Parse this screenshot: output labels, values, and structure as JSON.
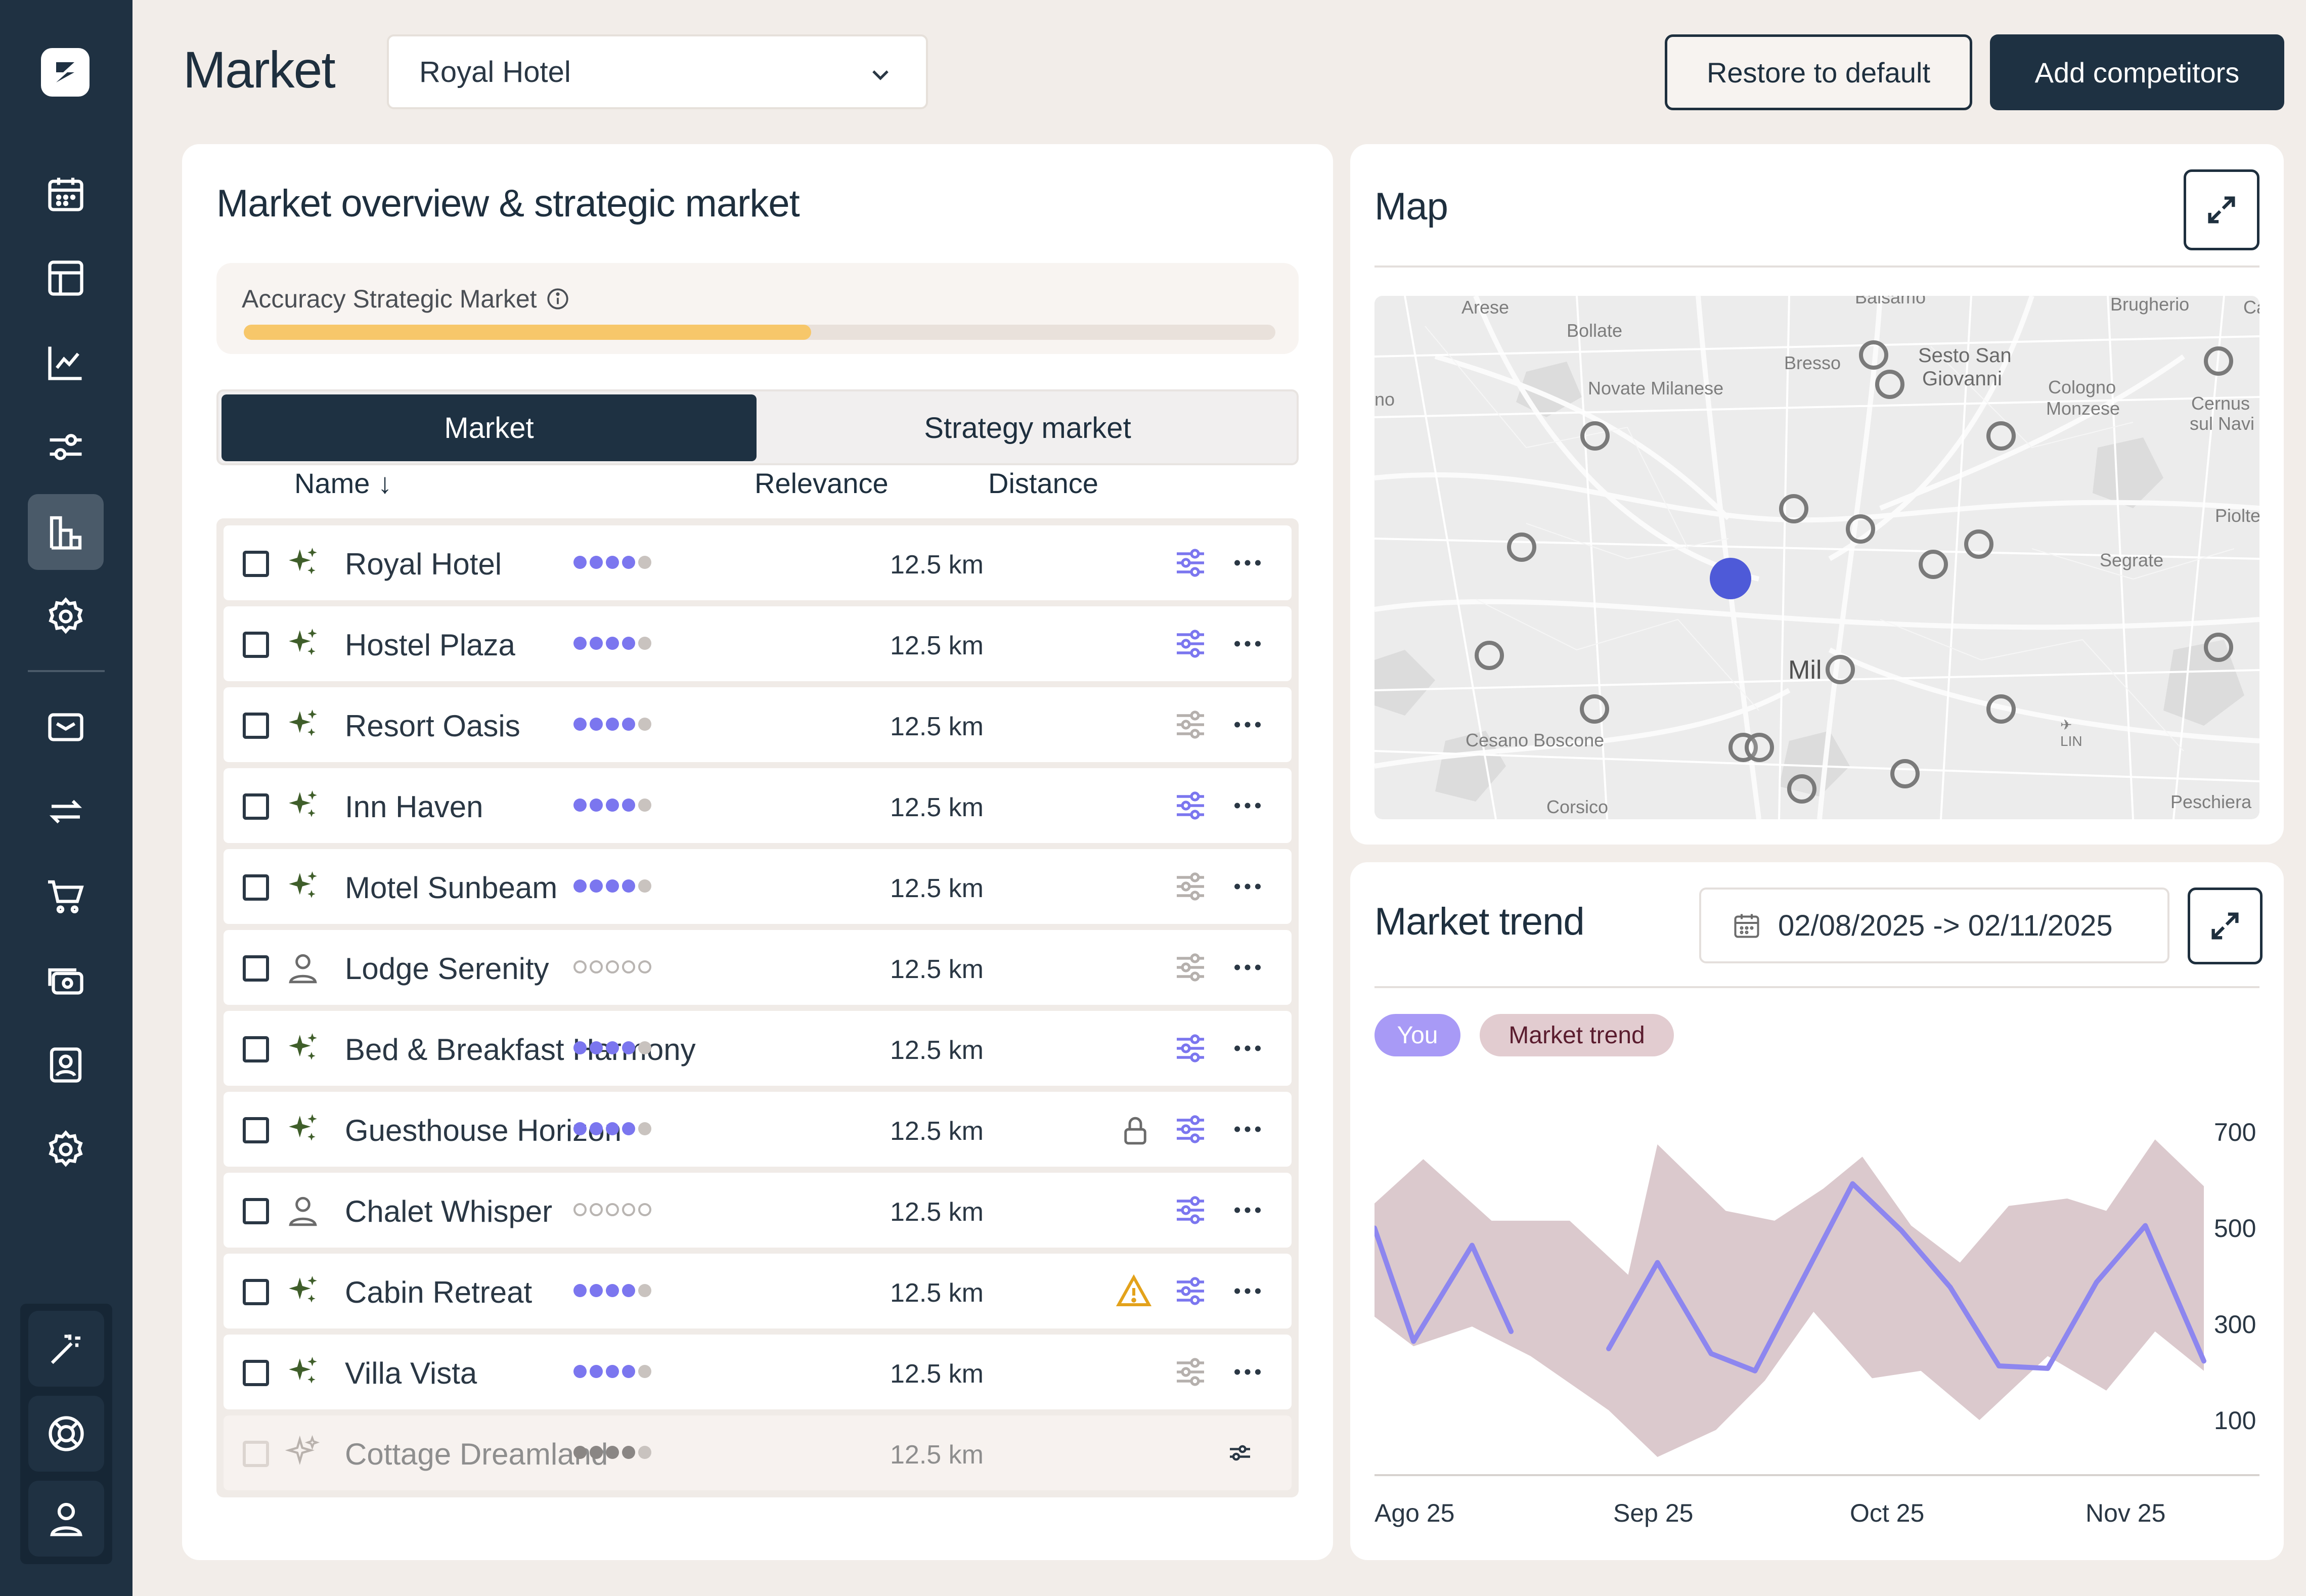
{
  "header": {
    "title": "Market",
    "hotel_select": "Royal Hotel",
    "restore_label": "Restore to default",
    "add_label": "Add competitors"
  },
  "overview": {
    "title": "Market overview & strategic market",
    "accuracy_label": "Accuracy Strategic Market",
    "accuracy_progress_pct": 55,
    "tabs": {
      "market": "Market",
      "strategy": "Strategy market"
    },
    "columns": {
      "name": "Name ↓",
      "relevance": "Relevance",
      "distance": "Distance"
    },
    "rows": [
      {
        "name": "Royal Hotel",
        "icon": "sparkle-icon",
        "relevance": 4,
        "distance": "12.5 km",
        "sliders_active": true
      },
      {
        "name": "Hostel Plaza",
        "icon": "sparkle-icon",
        "relevance": 4,
        "distance": "12.5 km",
        "sliders_active": true
      },
      {
        "name": "Resort Oasis",
        "icon": "sparkle-icon",
        "relevance": 4,
        "distance": "12.5 km",
        "sliders_active": false
      },
      {
        "name": "Inn Haven",
        "icon": "sparkle-icon",
        "relevance": 4,
        "distance": "12.5 km",
        "sliders_active": true
      },
      {
        "name": "Motel Sunbeam",
        "icon": "sparkle-icon",
        "relevance": 4,
        "distance": "12.5 km",
        "sliders_active": false
      },
      {
        "name": "Lodge Serenity",
        "icon": "person-icon",
        "relevance": 0,
        "distance": "12.5 km",
        "sliders_active": false
      },
      {
        "name": "Bed & Breakfast Harmony",
        "icon": "sparkle-icon",
        "relevance": 4,
        "distance": "12.5 km",
        "sliders_active": true
      },
      {
        "name": "Guesthouse Horizon",
        "icon": "sparkle-icon",
        "relevance": 4,
        "distance": "12.5 km",
        "sliders_active": true,
        "badge": "lock-icon"
      },
      {
        "name": "Chalet Whisper",
        "icon": "person-icon",
        "relevance": 0,
        "distance": "12.5 km",
        "sliders_active": true
      },
      {
        "name": "Cabin Retreat",
        "icon": "sparkle-icon",
        "relevance": 4,
        "distance": "12.5 km",
        "sliders_active": true,
        "badge": "warning-icon"
      },
      {
        "name": "Villa Vista",
        "icon": "sparkle-icon",
        "relevance": 4,
        "distance": "12.5 km",
        "sliders_active": false
      },
      {
        "name": "Cottage Dreamland",
        "icon": "sparkle-icon",
        "relevance": 4,
        "distance": "12.5 km",
        "disabled": true
      }
    ]
  },
  "map": {
    "title": "Map",
    "labels": [
      "Arese",
      "Bollate",
      "Balsamo",
      "Brugherio",
      "Bresso",
      "Sesto San",
      "Giovanni",
      "Novate Milanese",
      "Cologno",
      "Monzese",
      "Cernusco",
      "sul Naviglio",
      "Pioltello",
      "Segrate",
      "Mil",
      "Cesano Boscone",
      "LIN",
      "Corsico",
      "Peschiera"
    ]
  },
  "trend": {
    "title": "Market trend",
    "date_range": "02/08/2025 -> 02/11/2025",
    "chip_you": "You",
    "chip_market": "Market trend",
    "chart_data": {
      "type": "area",
      "x": [
        "Ago 25",
        "Sep 25",
        "Oct 25",
        "Nov 25"
      ],
      "y_ticks": [
        700,
        500,
        300,
        100
      ],
      "ylim": [
        0,
        760
      ],
      "series": [
        {
          "name": "You",
          "type": "line",
          "color": "#8d86ef",
          "segments": [
            [
              [
                0,
                510
              ],
              [
                0.08,
                280
              ],
              [
                0.2,
                475
              ],
              [
                0.28,
                300
              ]
            ],
            [
              [
                0.48,
                265
              ],
              [
                0.58,
                440
              ],
              [
                0.69,
                255
              ],
              [
                0.78,
                220
              ],
              [
                0.98,
                600
              ],
              [
                1.08,
                505
              ],
              [
                1.18,
                390
              ],
              [
                1.28,
                230
              ],
              [
                1.38,
                225
              ],
              [
                1.48,
                400
              ],
              [
                1.58,
                515
              ],
              [
                1.7,
                240
              ]
            ]
          ]
        },
        {
          "name": "Market trend",
          "type": "band",
          "color": "#dbc9cd",
          "upper": [
            [
              0,
              560
            ],
            [
              0.1,
              650
            ],
            [
              0.24,
              525
            ],
            [
              0.4,
              525
            ],
            [
              0.52,
              415
            ],
            [
              0.58,
              680
            ],
            [
              0.72,
              545
            ],
            [
              0.82,
              525
            ],
            [
              0.92,
              590
            ],
            [
              1.0,
              655
            ],
            [
              1.1,
              515
            ],
            [
              1.2,
              440
            ],
            [
              1.3,
              555
            ],
            [
              1.42,
              570
            ],
            [
              1.5,
              545
            ],
            [
              1.6,
              690
            ],
            [
              1.7,
              595
            ]
          ],
          "lower": [
            [
              1.7,
              220
            ],
            [
              1.6,
              300
            ],
            [
              1.5,
              180
            ],
            [
              1.38,
              250
            ],
            [
              1.24,
              120
            ],
            [
              1.12,
              220
            ],
            [
              1.02,
              205
            ],
            [
              0.9,
              340
            ],
            [
              0.8,
              200
            ],
            [
              0.7,
              100
            ],
            [
              0.58,
              45
            ],
            [
              0.48,
              140
            ],
            [
              0.32,
              250
            ],
            [
              0.2,
              310
            ],
            [
              0.08,
              270
            ],
            [
              0,
              330
            ]
          ]
        }
      ]
    }
  },
  "colors": {
    "navy": "#1e3142",
    "accent_purple": "#7b76ef",
    "accuracy_fill": "#f7c76a",
    "band": "#dbc9cd"
  }
}
